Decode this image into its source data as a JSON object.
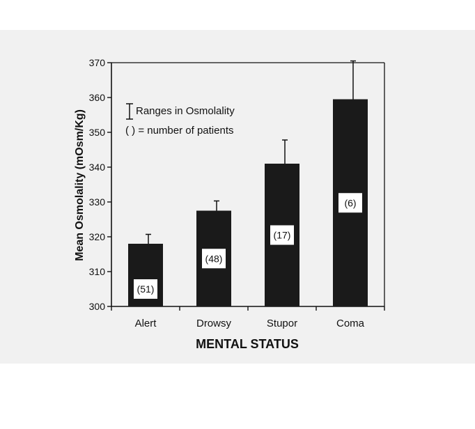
{
  "chart_data": {
    "type": "bar",
    "categories": [
      "Alert",
      "Drowsy",
      "Stupor",
      "Coma"
    ],
    "values": [
      318,
      327.5,
      341,
      359.5
    ],
    "range_upper": [
      320.7,
      330.3,
      347.8,
      370.5
    ],
    "patient_labels": [
      "(51)",
      "(48)",
      "(17)",
      "(6)"
    ],
    "ylabel": "Mean Osmolality (mOsm/Kg)",
    "xlabel": "MENTAL STATUS",
    "ylim": [
      300,
      370
    ],
    "yticks": [
      300,
      310,
      320,
      330,
      340,
      350,
      360,
      370
    ],
    "legend": {
      "position": "top-left",
      "range_entry": "Ranges in Osmolality",
      "count_entry": "( ) = number of patients"
    },
    "grid": false,
    "colors": {
      "bar": "#1a1a1a",
      "label_box": "#ffffff",
      "panel": "#f1f1f1"
    }
  }
}
